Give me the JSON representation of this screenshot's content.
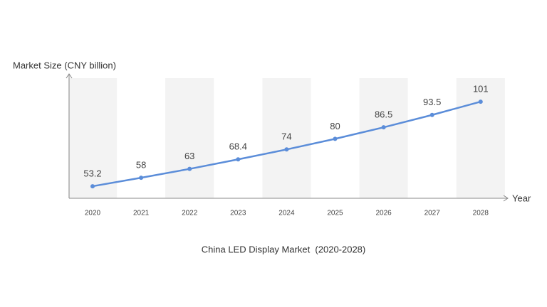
{
  "chart_data": {
    "type": "line",
    "title": "China LED Display Market  (2020-2028)",
    "y_label": "Market Size (CNY billion)",
    "x_label": "Year",
    "categories": [
      "2020",
      "2021",
      "2022",
      "2023",
      "2024",
      "2025",
      "2026",
      "2027",
      "2028"
    ],
    "series": [
      {
        "name": "Market Size",
        "color": "#5b8dd9",
        "values": [
          53.2,
          58,
          63,
          68.4,
          74,
          80,
          86.5,
          93.5,
          101
        ]
      }
    ],
    "ylim": [
      46.4,
      116.3
    ]
  }
}
